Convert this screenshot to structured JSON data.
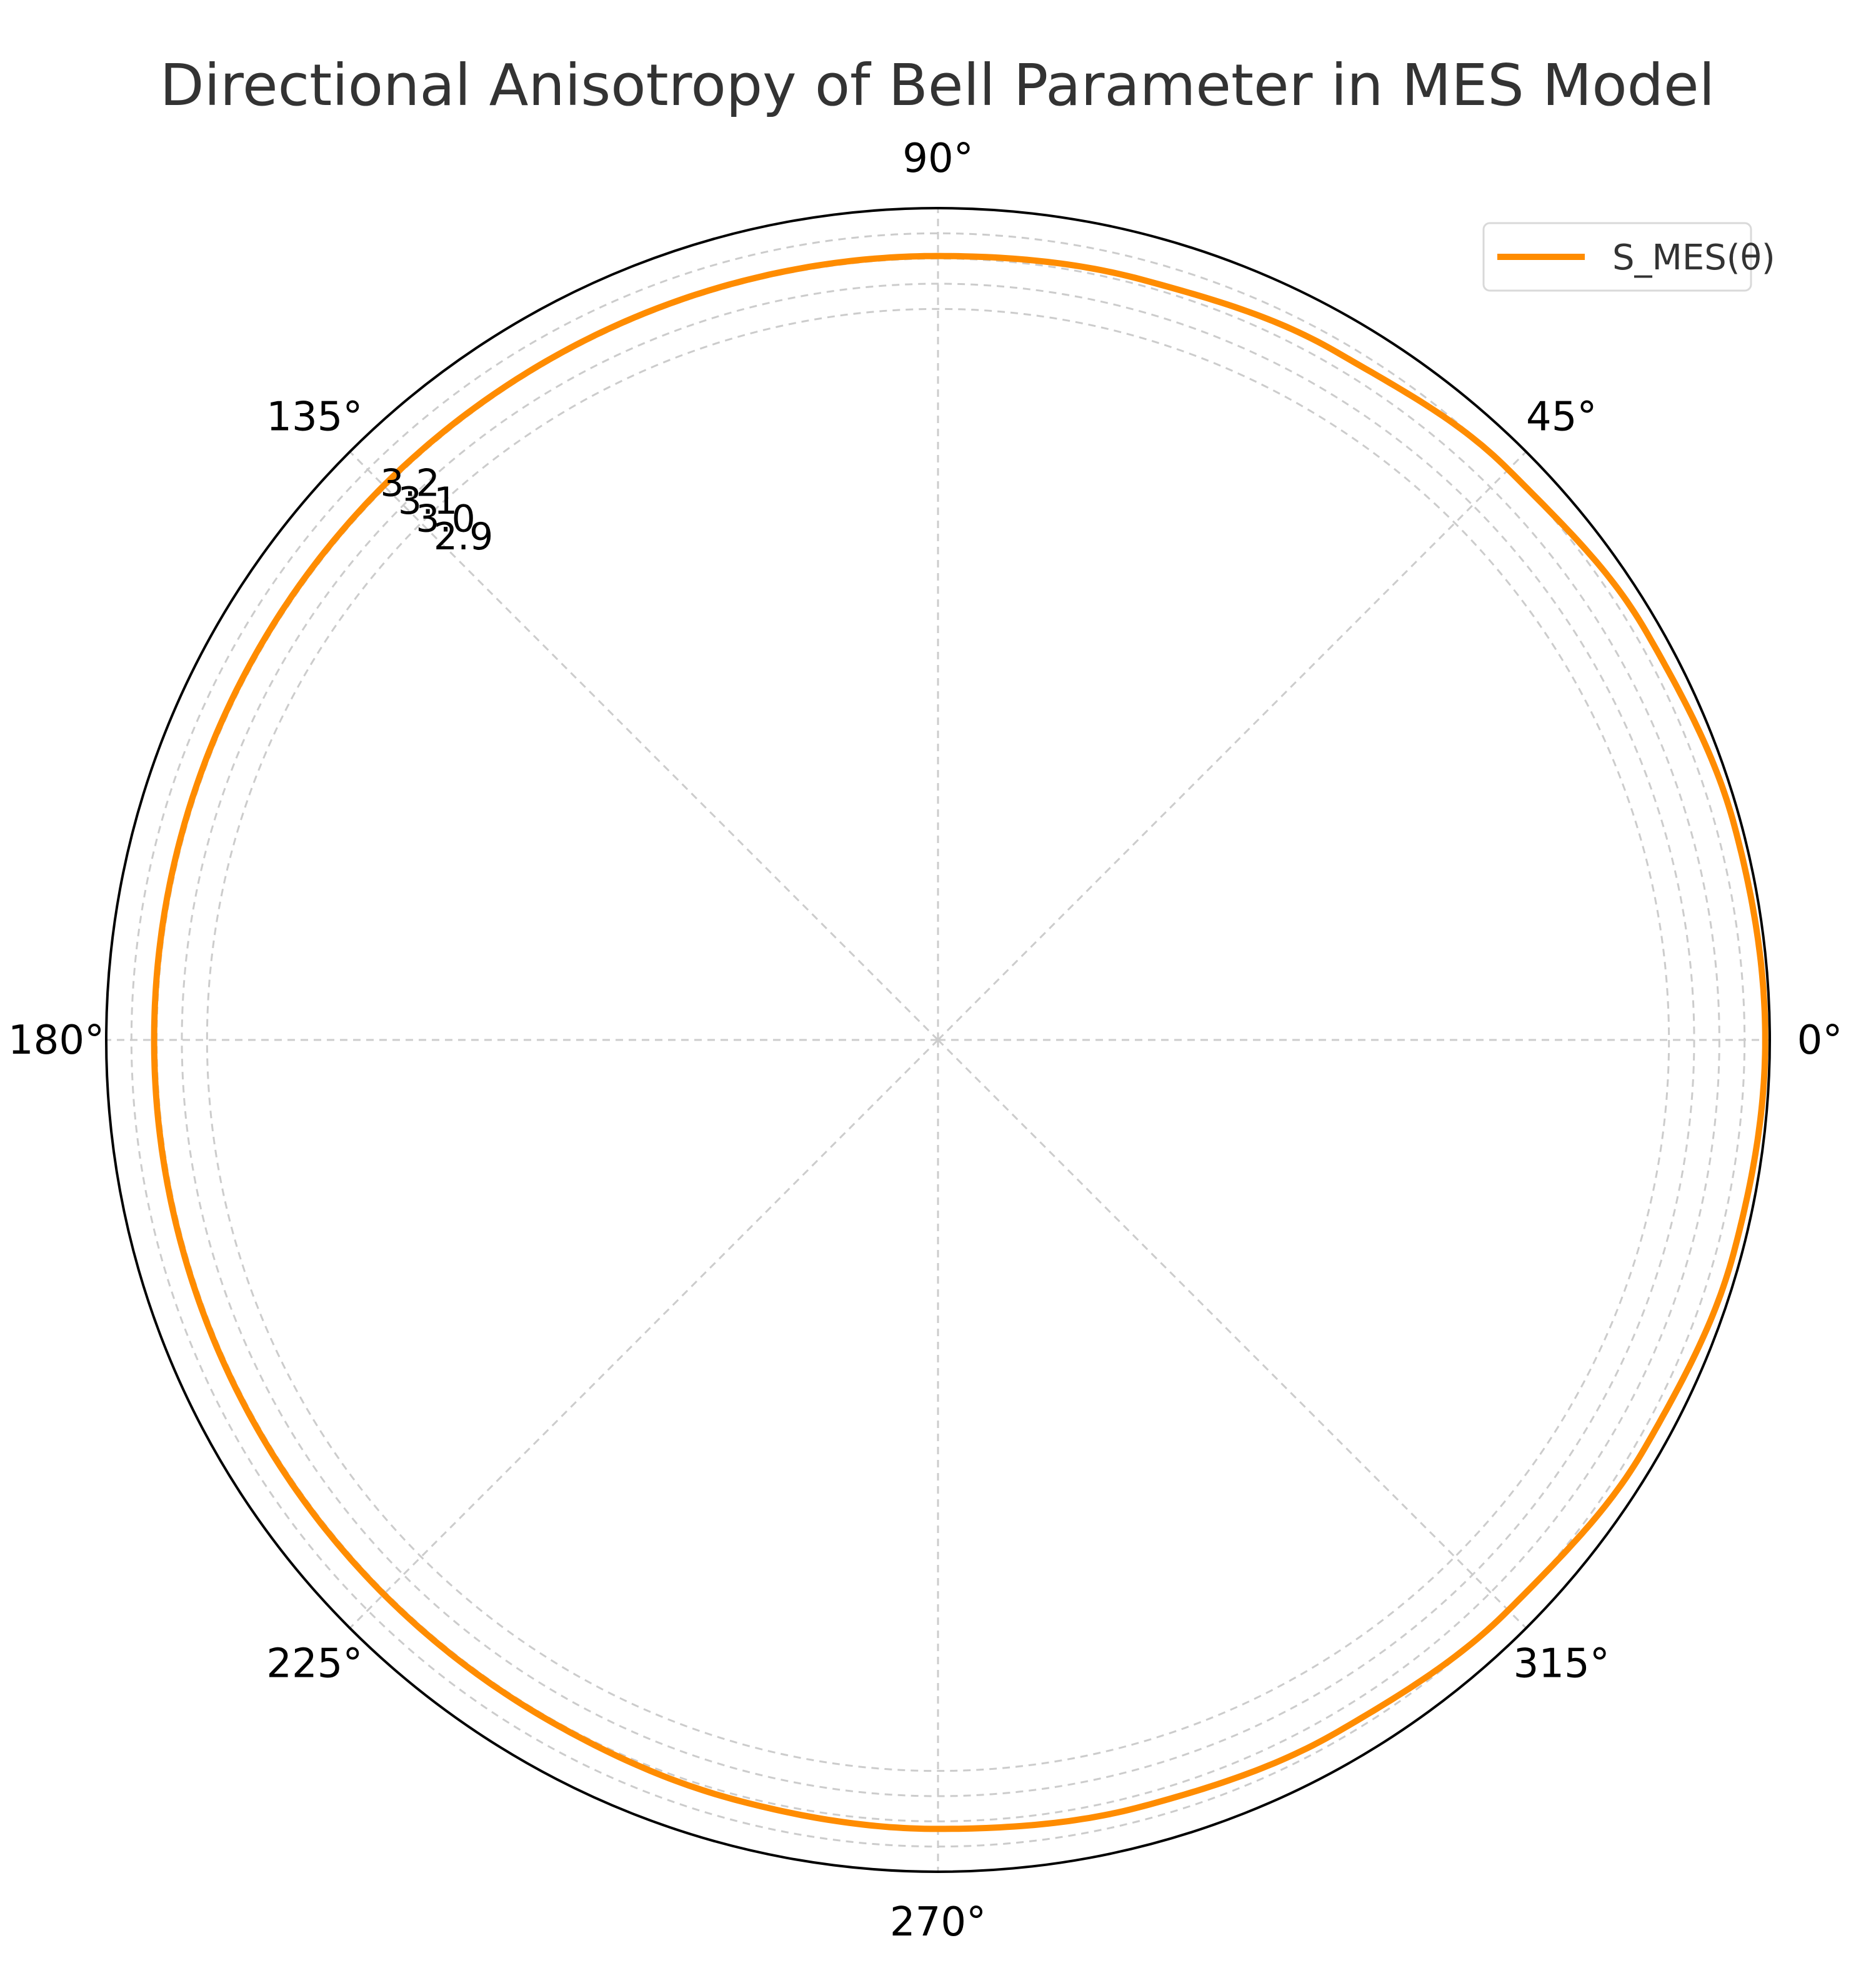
{
  "title": "Directional Anisotropy of Bell Parameter in MES Model",
  "colors": {
    "series": "#ff8c00",
    "grid": "#cccccc",
    "frame": "#000000",
    "title": "#333333"
  },
  "chart_data": {
    "type": "line",
    "projection": "polar",
    "title": "Directional Anisotropy of Bell Parameter in MES Model",
    "theta_unit": "degrees",
    "theta_ticks": [
      0,
      45,
      90,
      135,
      180,
      225,
      270,
      315
    ],
    "theta_tick_labels": [
      "0°",
      "45°",
      "90°",
      "135°",
      "180°",
      "225°",
      "270°",
      "315°"
    ],
    "r_ticks": [
      2.9,
      3.0,
      3.1,
      3.2
    ],
    "r_tick_labels": [
      "2.9",
      "3.0",
      "3.1",
      "3.2"
    ],
    "r_tick_label_angle": 135,
    "rlim": [
      0,
      3.3
    ],
    "grid": true,
    "legend": {
      "position": "top-right"
    },
    "series": [
      {
        "name": "S_MES(θ)",
        "theta": [
          0,
          15,
          30,
          45,
          60,
          75,
          90,
          105,
          120,
          135,
          150,
          165,
          180,
          195,
          210,
          225,
          240,
          255,
          270,
          285,
          300,
          315,
          330,
          345,
          360
        ],
        "r": [
          3.282,
          3.272,
          3.243,
          3.2,
          3.154,
          3.123,
          3.11,
          3.109,
          3.109,
          3.11,
          3.11,
          3.11,
          3.11,
          3.11,
          3.11,
          3.11,
          3.11,
          3.12,
          3.13,
          3.147,
          3.17,
          3.2,
          3.238,
          3.268,
          3.282
        ]
      }
    ]
  }
}
